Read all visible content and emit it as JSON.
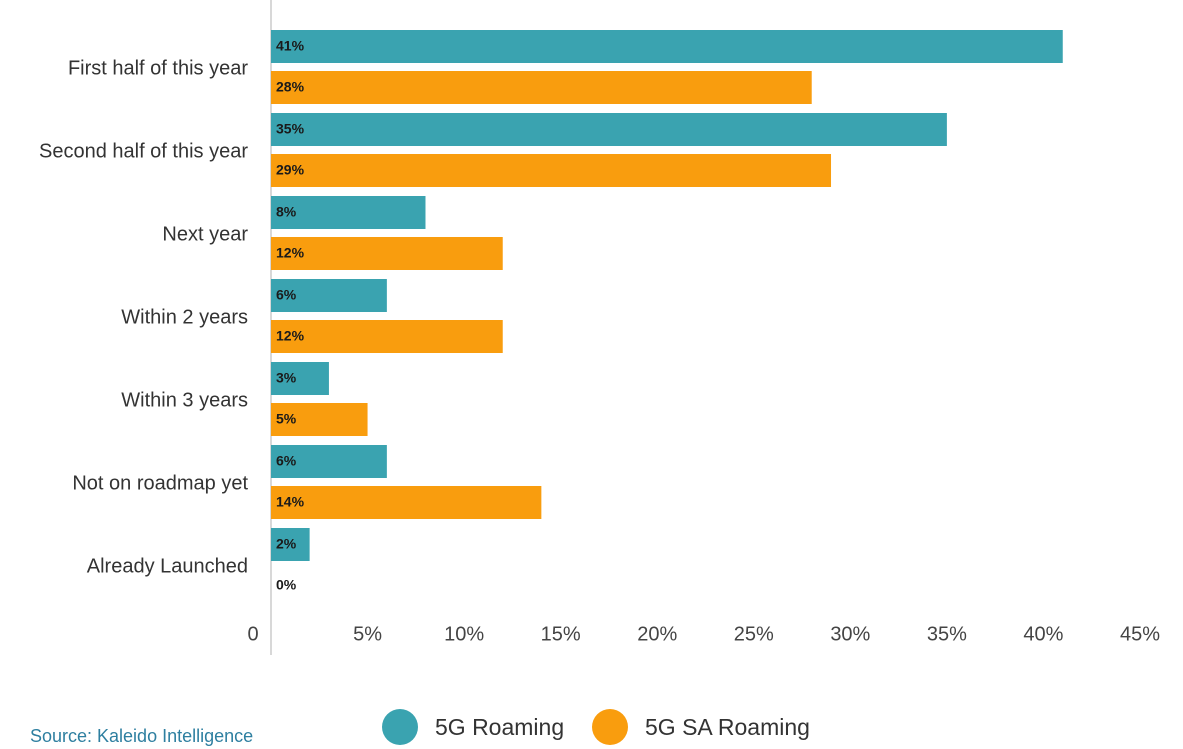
{
  "chart_data": {
    "type": "bar",
    "orientation": "horizontal",
    "categories": [
      "First half of this year",
      "Second half of this year",
      "Next year",
      "Within 2 years",
      "Within 3 years",
      "Not on roadmap yet",
      "Already Launched"
    ],
    "series": [
      {
        "name": "5G Roaming",
        "color": "#3aa3b0",
        "values": [
          41,
          35,
          8,
          6,
          3,
          6,
          2
        ],
        "value_labels": [
          "41%",
          "35%",
          "8%",
          "6%",
          "3%",
          "6%",
          "2%"
        ]
      },
      {
        "name": "5G SA Roaming",
        "color": "#f99d0e",
        "values": [
          28,
          29,
          12,
          12,
          5,
          14,
          0
        ],
        "value_labels": [
          "28%",
          "29%",
          "12%",
          "12%",
          "5%",
          "14%",
          "0%"
        ]
      }
    ],
    "xlim": [
      0,
      45
    ],
    "xticks": [
      0,
      {
        "value": 5,
        "label": "5%"
      },
      {
        "value": 10,
        "label": "10%"
      },
      {
        "value": 15,
        "label": "15%"
      },
      {
        "value": 20,
        "label": "20%"
      },
      {
        "value": 25,
        "label": "25%"
      },
      {
        "value": 30,
        "label": "30%"
      },
      {
        "value": 35,
        "label": "35%"
      },
      {
        "value": 40,
        "label": "40%"
      },
      {
        "value": 45,
        "label": "45%"
      }
    ],
    "legend": "bottom",
    "source": "Source: Kaleido Intelligence"
  }
}
